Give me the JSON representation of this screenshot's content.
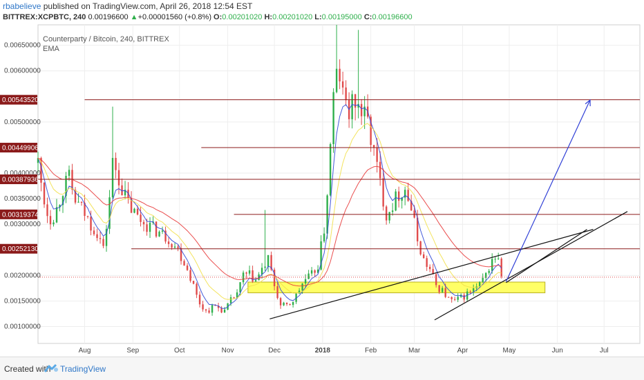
{
  "header": {
    "user": "rbabelieve",
    "published": "published on TradingView.com, April 26, 2018 12:54 EST",
    "symbol": "BITTREX:XCPBTC, 240",
    "last": "0.00196600",
    "change": "+0.00001560 (+0.8%)",
    "open_label": "O:",
    "open": "0.00201020",
    "high_label": "H:",
    "high": "0.00201020",
    "low_label": "L:",
    "low": "0.00195000",
    "close_label": "C:",
    "close": "0.00196600",
    "up_arrow": "▲"
  },
  "legend": {
    "title": "Counterparty / Bitcoin, 240, BITTREX",
    "indicator": "EMA"
  },
  "footer": {
    "created_with": "Created with",
    "brand": "TradingView"
  },
  "colors": {
    "up": "#2eaf4b",
    "down": "#e04b4b",
    "level": "#8b1a1a",
    "zone": "#ffff66",
    "projection": "#2f3fd6",
    "ema_fast": "#2f48d6",
    "ema_mid": "#f2e04a",
    "ema_slow": "#e83a3a",
    "user_link": "#2f77c8"
  },
  "chart_data": {
    "type": "candlestick",
    "title": "Counterparty / Bitcoin, 240, BITTREX",
    "y_axis_position": "left",
    "y_ticks": [
      "0.00650000",
      "0.00600000",
      "0.00500000",
      "0.00400000",
      "0.00350000",
      "0.00300000",
      "0.00200000",
      "0.00150000",
      "0.00100000"
    ],
    "ylim": [
      0.00067,
      0.0069
    ],
    "x_ticks": [
      "Aug",
      "Sep",
      "Oct",
      "Nov",
      "Dec",
      "2018",
      "Feb",
      "Mar",
      "Apr",
      "May",
      "Jun",
      "Jul"
    ],
    "x_ticks_bold": [
      "2018"
    ],
    "xlim": [
      "2017-07-02",
      "2018-07-24"
    ],
    "x_tick_dates": [
      "2017-08-01",
      "2017-09-01",
      "2017-10-01",
      "2017-11-01",
      "2017-12-01",
      "2018-01-01",
      "2018-02-01",
      "2018-03-01",
      "2018-04-01",
      "2018-05-01",
      "2018-06-01",
      "2018-07-01"
    ],
    "price_levels": [
      {
        "value": 0.0054352,
        "label": "0.00543520",
        "start": "2017-08-01"
      },
      {
        "value": 0.00449906,
        "label": "0.00449906",
        "start": "2017-10-15"
      },
      {
        "value": 0.00387936,
        "label": "0.00387936",
        "start": "2017-07-02"
      },
      {
        "value": 0.00319374,
        "label": "0.00319374",
        "start": "2017-11-05"
      },
      {
        "value": 0.0025213,
        "label": "0.00252130",
        "start": "2017-08-31"
      }
    ],
    "current_price": 0.001966,
    "zone": {
      "start": "2017-11-14",
      "end": "2018-05-24",
      "low": 0.00166,
      "high": 0.00187
    },
    "trendlines": [
      {
        "p1": [
          "2017-11-28",
          0.00115
        ],
        "p2": [
          "2018-06-24",
          0.0029
        ]
      },
      {
        "p1": [
          "2018-03-14",
          0.00113
        ],
        "p2": [
          "2018-07-16",
          0.00325
        ]
      },
      {
        "p1": [
          "2018-04-29",
          0.00186
        ],
        "p2": [
          "2018-06-20",
          0.0029
        ]
      }
    ],
    "projection": {
      "from": [
        "2018-04-29",
        0.00188
      ],
      "to": [
        "2018-06-22",
        0.00543
      ]
    },
    "price_path": [
      [
        "2017-07-02",
        0.0042
      ],
      [
        "2017-07-05",
        0.0036
      ],
      [
        "2017-07-09",
        0.0031
      ],
      [
        "2017-07-13",
        0.0032
      ],
      [
        "2017-07-18",
        0.0037
      ],
      [
        "2017-07-22",
        0.0039
      ],
      [
        "2017-07-25",
        0.0035
      ],
      [
        "2017-07-30",
        0.0033
      ],
      [
        "2017-08-05",
        0.003
      ],
      [
        "2017-08-10",
        0.0028
      ],
      [
        "2017-08-13",
        0.0025
      ],
      [
        "2017-08-16",
        0.0032
      ],
      [
        "2017-08-19",
        0.0042
      ],
      [
        "2017-08-22",
        0.004
      ],
      [
        "2017-08-26",
        0.0036
      ],
      [
        "2017-08-31",
        0.0033
      ],
      [
        "2017-09-05",
        0.0031
      ],
      [
        "2017-09-10",
        0.003
      ],
      [
        "2017-09-15",
        0.0029
      ],
      [
        "2017-09-20",
        0.0028
      ],
      [
        "2017-09-25",
        0.0027
      ],
      [
        "2017-09-30",
        0.0025
      ],
      [
        "2017-10-05",
        0.0022
      ],
      [
        "2017-10-09",
        0.0019
      ],
      [
        "2017-10-13",
        0.0015
      ],
      [
        "2017-10-18",
        0.0013
      ],
      [
        "2017-10-24",
        0.0014
      ],
      [
        "2017-10-30",
        0.0013
      ],
      [
        "2017-11-03",
        0.0015
      ],
      [
        "2017-11-08",
        0.0017
      ],
      [
        "2017-11-11",
        0.002
      ],
      [
        "2017-11-15",
        0.002
      ],
      [
        "2017-11-19",
        0.0019
      ],
      [
        "2017-11-23",
        0.0021
      ],
      [
        "2017-11-27",
        0.0023
      ],
      [
        "2017-12-01",
        0.0018
      ],
      [
        "2017-12-05",
        0.0014
      ],
      [
        "2017-12-10",
        0.0014
      ],
      [
        "2017-12-15",
        0.0016
      ],
      [
        "2017-12-20",
        0.0019
      ],
      [
        "2017-12-25",
        0.002
      ],
      [
        "2017-12-29",
        0.0022
      ],
      [
        "2018-01-02",
        0.0029
      ],
      [
        "2018-01-05",
        0.004
      ],
      [
        "2018-01-08",
        0.0055
      ],
      [
        "2018-01-11",
        0.0061
      ],
      [
        "2018-01-14",
        0.0055
      ],
      [
        "2018-01-18",
        0.0052
      ],
      [
        "2018-01-22",
        0.0054
      ],
      [
        "2018-01-26",
        0.0052
      ],
      [
        "2018-01-30",
        0.005
      ],
      [
        "2018-02-03",
        0.0044
      ],
      [
        "2018-02-07",
        0.0038
      ],
      [
        "2018-02-11",
        0.0032
      ],
      [
        "2018-02-15",
        0.0034
      ],
      [
        "2018-02-19",
        0.0036
      ],
      [
        "2018-02-23",
        0.0037
      ],
      [
        "2018-02-27",
        0.0033
      ],
      [
        "2018-03-03",
        0.0027
      ],
      [
        "2018-03-07",
        0.0023
      ],
      [
        "2018-03-11",
        0.0021
      ],
      [
        "2018-03-15",
        0.0018
      ],
      [
        "2018-03-19",
        0.0017
      ],
      [
        "2018-03-24",
        0.0015
      ],
      [
        "2018-03-28",
        0.0015
      ],
      [
        "2018-04-02",
        0.0016
      ],
      [
        "2018-04-07",
        0.0017
      ],
      [
        "2018-04-12",
        0.0018
      ],
      [
        "2018-04-16",
        0.002
      ],
      [
        "2018-04-20",
        0.0023
      ],
      [
        "2018-04-23",
        0.0024
      ],
      [
        "2018-04-26",
        0.002
      ]
    ],
    "spikes": [
      {
        "date": "2017-08-20",
        "high": 0.0053
      },
      {
        "date": "2017-11-25",
        "high": 0.00328
      },
      {
        "date": "2018-01-11",
        "high": 0.0069
      },
      {
        "date": "2018-01-24",
        "high": 0.0068
      },
      {
        "date": "2017-07-24",
        "high": 0.004
      }
    ]
  }
}
